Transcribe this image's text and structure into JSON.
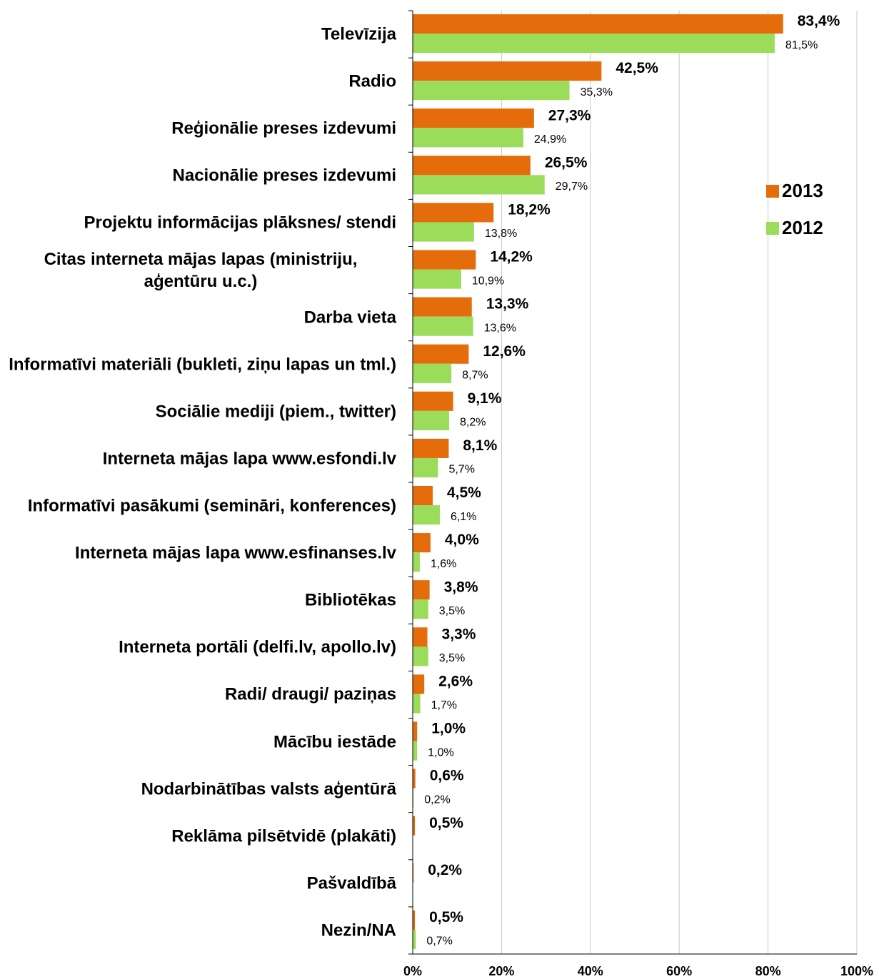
{
  "chart_data": {
    "type": "hbar",
    "categories": [
      "Televīzija",
      "Radio",
      "Reģionālie preses izdevumi",
      "Nacionālie preses izdevumi",
      "Projektu informācijas plāksnes/ stendi",
      "Citas interneta mājas lapas (ministriju, aģentūru u.c.)",
      "Darba vieta",
      "Informatīvi materiāli (bukleti, ziņu lapas un tml.)",
      "Sociālie mediji (piem., twitter)",
      "Interneta mājas lapa www.esfondi.lv",
      "Informatīvi pasākumi (semināri, konferences)",
      "Interneta mājas lapa www.esfinanses.lv",
      "Bibliotēkas",
      "Interneta portāli (delfi.lv, apollo.lv)",
      "Radi/ draugi/ paziņas",
      "Mācību iestāde",
      "Nodarbinātības valsts aģentūrā",
      "Reklāma pilsētvidē (plakāti)",
      "Pašvaldībā",
      "Nezin/NA"
    ],
    "series": [
      {
        "name": "2013",
        "color": "#e46c0a",
        "values": [
          83.4,
          42.5,
          27.3,
          26.5,
          18.2,
          14.2,
          13.3,
          12.6,
          9.1,
          8.1,
          4.5,
          4.0,
          3.8,
          3.3,
          2.6,
          1.0,
          0.6,
          0.5,
          0.2,
          0.5
        ],
        "value_labels": [
          "83,4%",
          "42,5%",
          "27,3%",
          "26,5%",
          "18,2%",
          "14,2%",
          "13,3%",
          "12,6%",
          "9,1%",
          "8,1%",
          "4,5%",
          "4,0%",
          "3,8%",
          "3,3%",
          "2,6%",
          "1,0%",
          "0,6%",
          "0,5%",
          "0,2%",
          "0,5%"
        ]
      },
      {
        "name": "2012",
        "color": "#9bdc5a",
        "values": [
          81.5,
          35.3,
          24.9,
          29.7,
          13.8,
          10.9,
          13.6,
          8.7,
          8.2,
          5.7,
          6.1,
          1.6,
          3.5,
          3.5,
          1.7,
          1.0,
          0.2,
          null,
          null,
          0.7
        ],
        "value_labels": [
          "81,5%",
          "35,3%",
          "24,9%",
          "29,7%",
          "13,8%",
          "10,9%",
          "13,6%",
          "8,7%",
          "8,2%",
          "5,7%",
          "6,1%",
          "1,6%",
          "3,5%",
          "3,5%",
          "1,7%",
          "1,0%",
          "0,2%",
          null,
          null,
          "0,7%"
        ]
      }
    ],
    "xlim": [
      0,
      100
    ],
    "xticks": [
      {
        "value": 0,
        "label": "0%"
      },
      {
        "value": 20,
        "label": "20%"
      },
      {
        "value": 40,
        "label": "40%"
      },
      {
        "value": 60,
        "label": "60%"
      },
      {
        "value": 80,
        "label": "80%"
      },
      {
        "value": 100,
        "label": "100%"
      }
    ],
    "grid": true,
    "legend_position": "right"
  }
}
